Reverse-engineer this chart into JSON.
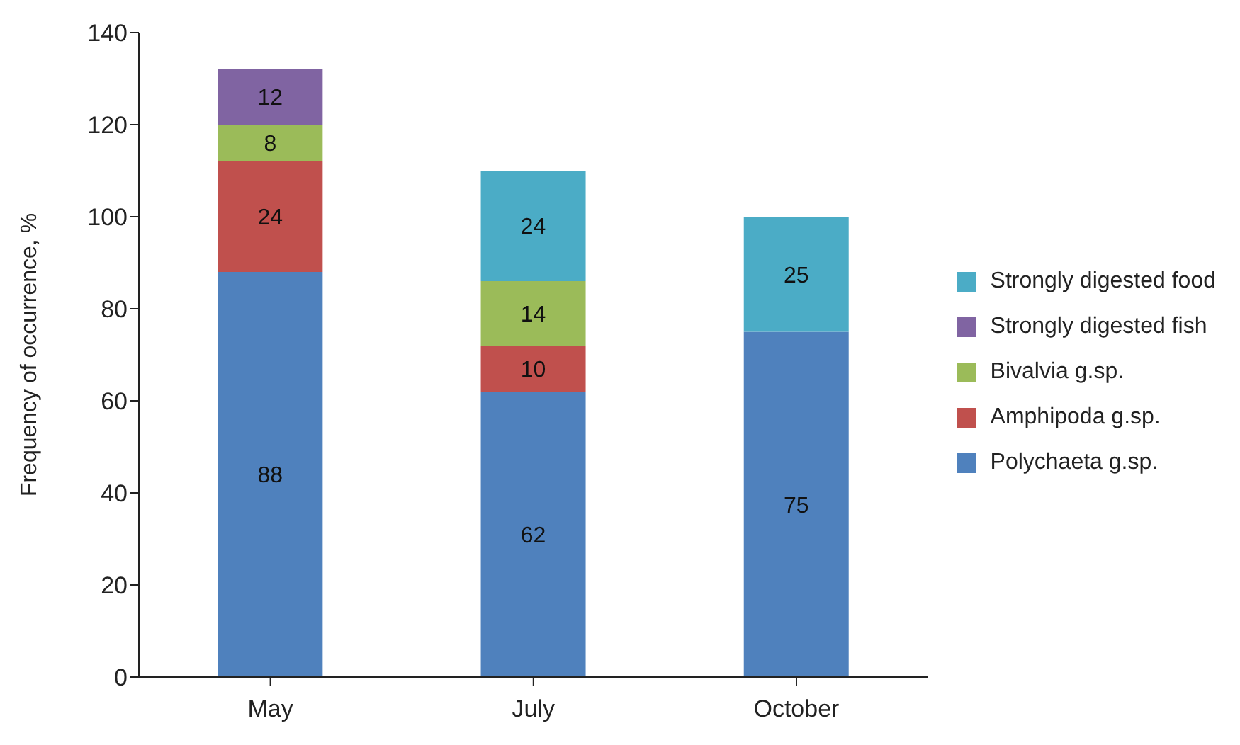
{
  "chart_data": {
    "type": "bar",
    "stacked": true,
    "ylabel": "Frequency of occurrence, %",
    "categories": [
      "May",
      "July",
      "October"
    ],
    "series": [
      {
        "name": "Polychaeta g.sp.",
        "color": "#4f81bd",
        "values": [
          88,
          62,
          75
        ]
      },
      {
        "name": "Amphipoda g.sp.",
        "color": "#c0504d",
        "values": [
          24,
          10,
          null
        ]
      },
      {
        "name": "Bivalvia g.sp.",
        "color": "#9bbb59",
        "values": [
          8,
          14,
          null
        ]
      },
      {
        "name": "Strongly digested fish",
        "color": "#8064a2",
        "values": [
          12,
          null,
          null
        ]
      },
      {
        "name": "Strongly digested food",
        "color": "#4bacc6",
        "values": [
          null,
          24,
          25
        ]
      }
    ],
    "ylim": [
      0,
      140
    ],
    "yticks": [
      0,
      20,
      40,
      60,
      80,
      100,
      120,
      140
    ],
    "grid": false,
    "legend": "right",
    "data_labels": true
  }
}
